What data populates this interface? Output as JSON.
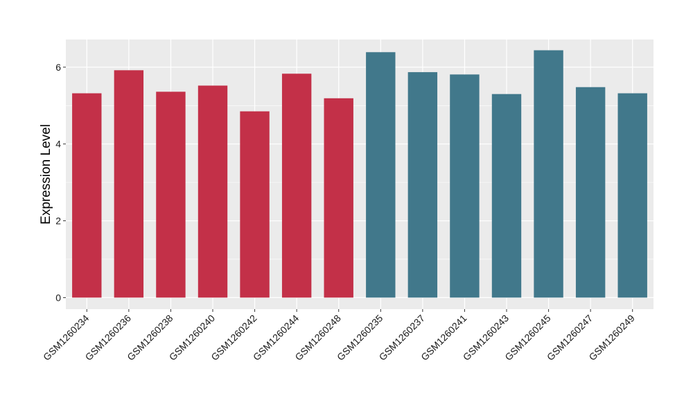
{
  "chart_data": {
    "type": "bar",
    "title": "",
    "xlabel": "",
    "ylabel": "Expression Level",
    "categories": [
      "GSM1260234",
      "GSM1260236",
      "GSM1260238",
      "GSM1260240",
      "GSM1260242",
      "GSM1260244",
      "GSM1260248",
      "GSM1260235",
      "GSM1260237",
      "GSM1260241",
      "GSM1260243",
      "GSM1260245",
      "GSM1260247",
      "GSM1260249"
    ],
    "values": [
      5.32,
      5.92,
      5.36,
      5.52,
      4.85,
      5.83,
      5.19,
      6.39,
      5.87,
      5.81,
      5.3,
      6.44,
      5.48,
      5.32
    ],
    "group": [
      "A",
      "A",
      "A",
      "A",
      "A",
      "A",
      "A",
      "B",
      "B",
      "B",
      "B",
      "B",
      "B",
      "B"
    ],
    "group_colors": {
      "A": "#c33048",
      "B": "#41788b"
    },
    "ylim": [
      -0.3,
      6.72
    ],
    "yticks": [
      0,
      2,
      4,
      6
    ],
    "grid": true,
    "panel_background": "#ebebeb",
    "legend": "none"
  }
}
